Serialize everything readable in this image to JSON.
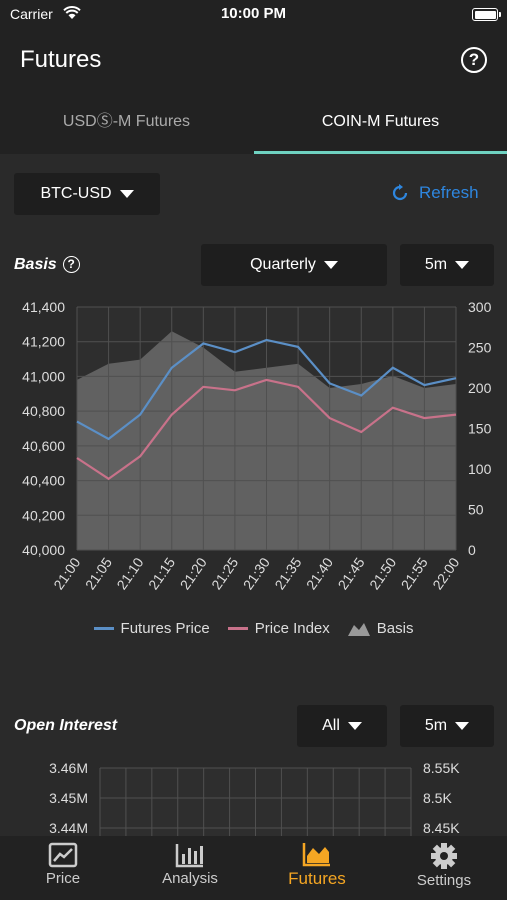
{
  "status": {
    "carrier": "Carrier",
    "time": "10:00 PM"
  },
  "header": {
    "title": "Futures",
    "help": "?"
  },
  "tabs": [
    {
      "label": "USDⓈ-M Futures"
    },
    {
      "label": "COIN-M Futures"
    }
  ],
  "symbol": {
    "label": "BTC-USD"
  },
  "refresh": {
    "label": "Refresh"
  },
  "basis": {
    "title": "Basis",
    "help": "?",
    "contract": "Quarterly",
    "interval": "5m"
  },
  "open_interest": {
    "title": "Open Interest",
    "filter": "All",
    "interval": "5m"
  },
  "colors": {
    "futures": "#5b8fc6",
    "index": "#c8728a",
    "accent": "#f5a623",
    "tab_indicator": "#6fd2c1",
    "refresh": "#2e86de"
  },
  "chart_data": [
    {
      "type": "line",
      "x": [
        "21:00",
        "21:05",
        "21:10",
        "21:15",
        "21:20",
        "21:25",
        "21:30",
        "21:35",
        "21:40",
        "21:45",
        "21:50",
        "21:55",
        "22:00"
      ],
      "series": [
        {
          "name": "Futures Price",
          "axis": "left",
          "values": [
            40740,
            40640,
            40780,
            41050,
            41190,
            41140,
            41210,
            41170,
            40960,
            40890,
            41050,
            40950,
            40990
          ]
        },
        {
          "name": "Price Index",
          "axis": "left",
          "values": [
            40530,
            40410,
            40540,
            40780,
            40940,
            40920,
            40980,
            40940,
            40760,
            40680,
            40820,
            40760,
            40780
          ]
        },
        {
          "name": "Basis",
          "type": "area",
          "axis": "right",
          "values": [
            210,
            230,
            235,
            270,
            250,
            220,
            225,
            230,
            200,
            205,
            215,
            200,
            205
          ]
        }
      ],
      "y_left": {
        "min": 40000,
        "max": 41400,
        "ticks": [
          "41,400",
          "41,200",
          "41,000",
          "40,800",
          "40,600",
          "40,400",
          "40,200",
          "40,000"
        ]
      },
      "y_right": {
        "min": 0,
        "max": 300,
        "ticks": [
          "300",
          "250",
          "200",
          "150",
          "100",
          "50",
          "0"
        ]
      },
      "grid": true,
      "legend": "bottom"
    },
    {
      "type": "line",
      "x": [],
      "series": [],
      "y_left": {
        "ticks": [
          "3.46M",
          "3.45M",
          "3.44M"
        ]
      },
      "y_right": {
        "ticks": [
          "8.55K",
          "8.5K",
          "8.45K"
        ]
      },
      "grid": true
    }
  ],
  "tabbar": [
    {
      "label": "Price",
      "icon": "price-chart-icon"
    },
    {
      "label": "Analysis",
      "icon": "analysis-bars-icon"
    },
    {
      "label": "Futures",
      "icon": "futures-area-icon",
      "active": true
    },
    {
      "label": "Settings",
      "icon": "gear-icon"
    }
  ]
}
